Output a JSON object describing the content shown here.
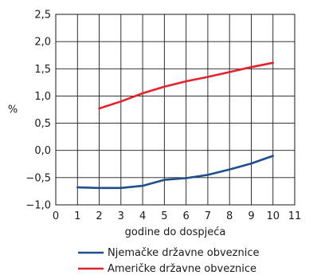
{
  "chart_data": {
    "type": "line",
    "title": "",
    "xlabel": "godine do dospjeća",
    "ylabel": "%",
    "xlim": [
      0,
      11
    ],
    "ylim": [
      -1.0,
      2.5
    ],
    "x_ticks": [
      0,
      1,
      2,
      3,
      4,
      5,
      6,
      7,
      8,
      9,
      10,
      11
    ],
    "y_ticks": [
      2.5,
      2.0,
      1.5,
      1.0,
      0.5,
      0.0,
      -0.5,
      -1.0
    ],
    "x_tick_labels": [
      "0",
      "1",
      "2",
      "3",
      "4",
      "5",
      "6",
      "7",
      "8",
      "9",
      "10",
      "11"
    ],
    "y_tick_labels": [
      "2,5",
      "2,0",
      "1,5",
      "1,0",
      "0,5",
      "0,0",
      "−0,5",
      "−1,0"
    ],
    "grid": true,
    "legend_position": "bottom",
    "series": [
      {
        "name": "Njemačke državne obveznice",
        "color": "#1f4e8c",
        "x": [
          1,
          2,
          3,
          4,
          5,
          6,
          7,
          8,
          9,
          10
        ],
        "y": [
          -0.68,
          -0.69,
          -0.69,
          -0.65,
          -0.54,
          -0.51,
          -0.45,
          -0.35,
          -0.24,
          -0.1
        ]
      },
      {
        "name": "Američke državne obveznice",
        "color": "#e2222c",
        "x": [
          2,
          3,
          4,
          5,
          6,
          7,
          8,
          9,
          10
        ],
        "y": [
          0.77,
          0.9,
          1.05,
          1.17,
          1.27,
          1.35,
          1.44,
          1.53,
          1.61
        ]
      }
    ]
  }
}
